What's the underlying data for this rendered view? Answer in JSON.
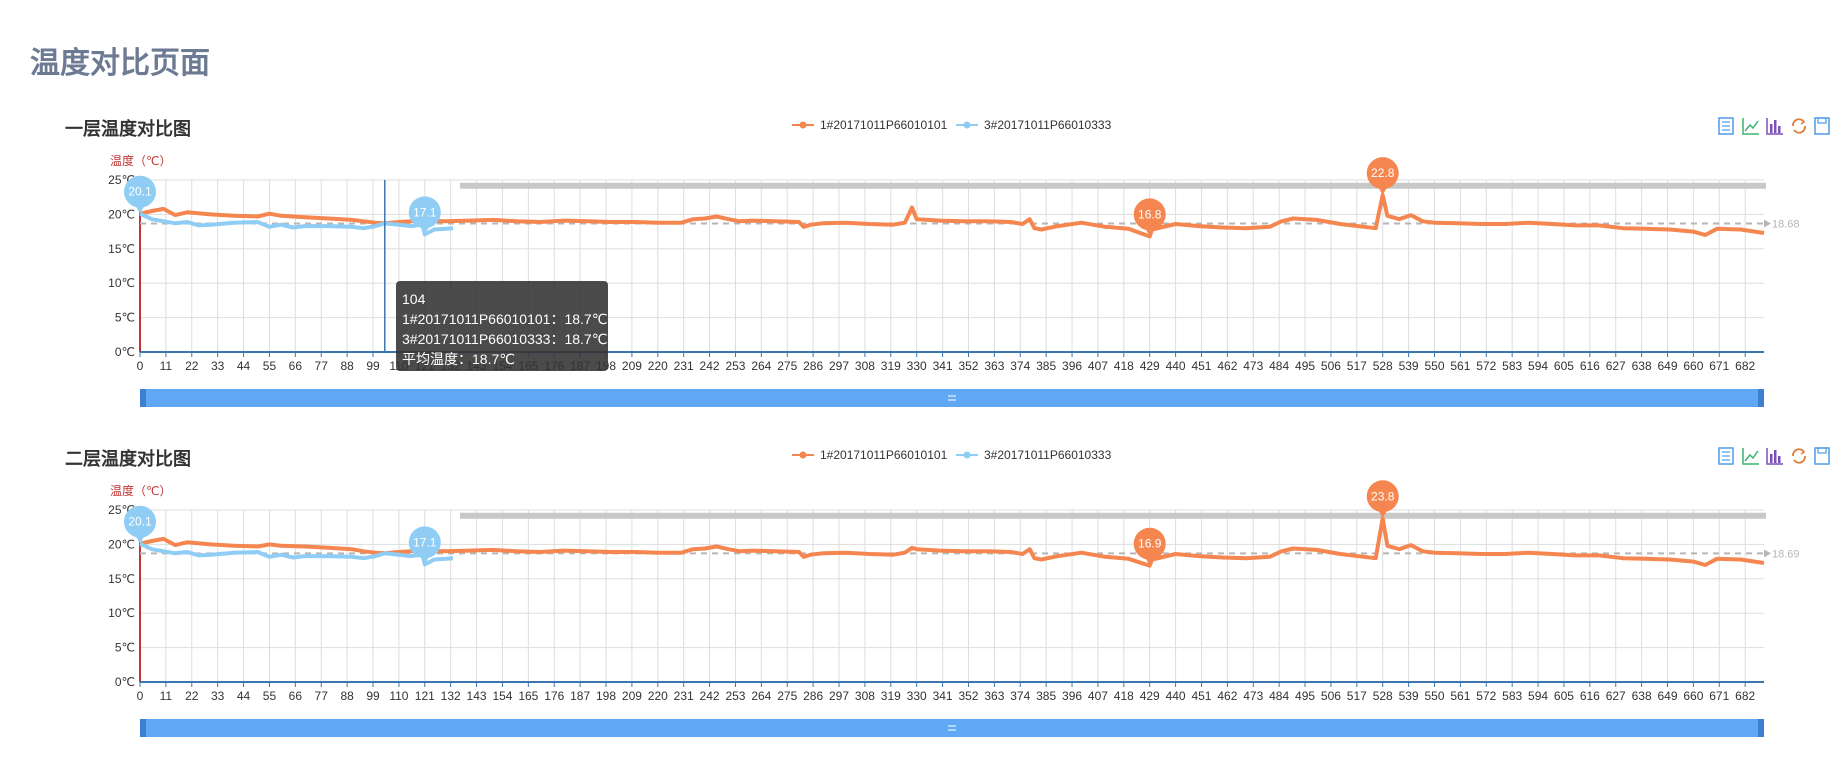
{
  "page": {
    "title": "温度对比页面"
  },
  "charts_meta": {
    "colors": {
      "series1": "#f5864f",
      "series2": "#8fcdf4",
      "avg": "#b6b6b6",
      "slider": "#61a8f4",
      "axis": "#3a77b0",
      "yaxis": "#c23531"
    },
    "toolbox": [
      "data-view-icon",
      "line-chart-icon",
      "bar-chart-icon",
      "restore-icon",
      "save-image-icon"
    ]
  },
  "tooltip": {
    "x": "104",
    "line1": "1#20171011P66010101：18.7℃",
    "line2": "3#20171011P66010333：18.7℃",
    "line3": "平均温度：18.7℃"
  },
  "chart_data": [
    {
      "type": "line",
      "title": "一层温度对比图",
      "ylabel": "温度（℃）",
      "ylim": [
        0,
        25
      ],
      "yticks": [
        "0℃",
        "5℃",
        "10℃",
        "15℃",
        "20℃",
        "25℃"
      ],
      "xlim": [
        0,
        690
      ],
      "xticks": [
        0,
        11,
        22,
        33,
        44,
        55,
        66,
        77,
        88,
        99,
        110,
        121,
        132,
        143,
        154,
        165,
        176,
        187,
        198,
        209,
        220,
        231,
        242,
        253,
        264,
        275,
        286,
        297,
        308,
        319,
        330,
        341,
        352,
        363,
        374,
        385,
        396,
        407,
        418,
        429,
        440,
        451,
        462,
        473,
        484,
        495,
        506,
        517,
        528,
        539,
        550,
        561,
        572,
        583,
        594,
        605,
        616,
        627,
        638,
        649,
        660,
        671,
        682
      ],
      "xtick_labels": [
        "0",
        "11",
        "22",
        "33",
        "44",
        "55",
        "66",
        "77",
        "88",
        "99",
        "110",
        "121",
        "132",
        "143",
        "154",
        "165",
        "176",
        "187",
        "198",
        "209",
        "220",
        "231",
        "242",
        "253",
        "264",
        "275",
        "286",
        "297",
        "308",
        "319",
        "330",
        "341",
        "352",
        "363",
        "374",
        "385",
        "396",
        "407",
        "418",
        "429",
        "440",
        "451",
        "462",
        "473",
        "484",
        "495",
        "506",
        "517",
        "528",
        "539",
        "550",
        "561",
        "572",
        "583",
        "594",
        "605",
        "616",
        "627",
        "638",
        "649",
        "660",
        "671",
        "682"
      ],
      "series": [
        {
          "name": "1#20171011P66010101",
          "x": [
            0,
            5,
            10,
            15,
            20,
            30,
            40,
            50,
            55,
            60,
            70,
            80,
            90,
            95,
            100,
            104,
            110,
            120,
            130,
            140,
            150,
            160,
            170,
            180,
            190,
            200,
            210,
            220,
            230,
            235,
            240,
            245,
            250,
            255,
            260,
            270,
            280,
            282,
            285,
            290,
            300,
            310,
            320,
            325,
            328,
            330,
            340,
            350,
            360,
            370,
            375,
            378,
            380,
            383,
            390,
            400,
            410,
            420,
            429,
            430,
            440,
            450,
            460,
            470,
            480,
            485,
            490,
            500,
            510,
            520,
            525,
            528,
            530,
            535,
            540,
            545,
            550,
            560,
            570,
            580,
            590,
            600,
            610,
            620,
            630,
            640,
            650,
            660,
            665,
            670,
            680,
            690
          ],
          "y": [
            20.1,
            20.5,
            20.8,
            19.9,
            20.3,
            20.0,
            19.8,
            19.7,
            20.1,
            19.8,
            19.6,
            19.4,
            19.2,
            19.0,
            18.8,
            18.7,
            18.9,
            19.1,
            19.0,
            19.1,
            19.2,
            19.0,
            18.9,
            19.1,
            19.0,
            18.9,
            18.9,
            18.8,
            18.8,
            19.3,
            19.4,
            19.7,
            19.3,
            19.0,
            19.1,
            19.0,
            18.9,
            18.2,
            18.5,
            18.7,
            18.8,
            18.6,
            18.5,
            18.8,
            21.0,
            19.3,
            19.1,
            19.0,
            19.0,
            18.9,
            18.6,
            19.3,
            18.0,
            17.8,
            18.3,
            18.8,
            18.2,
            17.9,
            16.8,
            17.8,
            18.6,
            18.3,
            18.1,
            18.0,
            18.2,
            19.0,
            19.4,
            19.2,
            18.6,
            18.2,
            18.0,
            22.8,
            19.8,
            19.3,
            19.9,
            19.0,
            18.8,
            18.7,
            18.6,
            18.6,
            18.8,
            18.6,
            18.4,
            18.4,
            18.0,
            17.9,
            17.8,
            17.5,
            17.0,
            17.9,
            17.8,
            17.3
          ]
        },
        {
          "name": "3#20171011P66010333",
          "x": [
            0,
            5,
            10,
            15,
            20,
            25,
            30,
            40,
            50,
            55,
            60,
            65,
            70,
            80,
            90,
            95,
            100,
            104,
            110,
            115,
            120,
            121,
            125,
            130,
            133
          ],
          "y": [
            20.1,
            19.3,
            19.0,
            18.7,
            18.9,
            18.4,
            18.5,
            18.8,
            18.9,
            18.2,
            18.5,
            18.1,
            18.3,
            18.3,
            18.2,
            18.0,
            18.3,
            18.7,
            18.5,
            18.3,
            18.5,
            17.1,
            17.8,
            17.9,
            18.0
          ]
        }
      ],
      "avg_line_label": "18.68",
      "markers": [
        {
          "label": "20.1",
          "x": 0,
          "y": 20.1,
          "series": 1
        },
        {
          "label": "17.1",
          "x": 121,
          "y": 17.1,
          "series": 1
        },
        {
          "label": "16.8",
          "x": 429,
          "y": 16.8,
          "series": 0
        },
        {
          "label": "22.8",
          "x": 528,
          "y": 22.8,
          "series": 0
        }
      ],
      "legend": [
        "1#20171011P66010101",
        "3#20171011P66010333"
      ],
      "crosshair_x": 104,
      "grid": true
    },
    {
      "type": "line",
      "title": "二层温度对比图",
      "ylabel": "温度（℃）",
      "ylim": [
        0,
        25
      ],
      "yticks": [
        "0℃",
        "5℃",
        "10℃",
        "15℃",
        "20℃",
        "25℃"
      ],
      "xlim": [
        0,
        690
      ],
      "xticks": [
        0,
        11,
        22,
        33,
        44,
        55,
        66,
        77,
        88,
        99,
        110,
        121,
        132,
        143,
        154,
        165,
        176,
        187,
        198,
        209,
        220,
        231,
        242,
        253,
        264,
        275,
        286,
        297,
        308,
        319,
        330,
        341,
        352,
        363,
        374,
        385,
        396,
        407,
        418,
        429,
        440,
        451,
        462,
        473,
        484,
        495,
        506,
        517,
        528,
        539,
        550,
        561,
        572,
        583,
        594,
        605,
        616,
        627,
        638,
        649,
        660,
        671,
        682
      ],
      "xtick_labels": [
        "0",
        "11",
        "22",
        "33",
        "44",
        "55",
        "66",
        "77",
        "88",
        "99",
        "110",
        "121",
        "132",
        "143",
        "154",
        "165",
        "176",
        "187",
        "198",
        "209",
        "220",
        "231",
        "242",
        "253",
        "264",
        "275",
        "286",
        "297",
        "308",
        "319",
        "330",
        "341",
        "352",
        "363",
        "374",
        "385",
        "396",
        "407",
        "418",
        "429",
        "440",
        "451",
        "462",
        "473",
        "484",
        "495",
        "506",
        "517",
        "528",
        "539",
        "550",
        "561",
        "572",
        "583",
        "594",
        "605",
        "616",
        "627",
        "638",
        "649",
        "660",
        "671",
        "682"
      ],
      "series": [
        {
          "name": "1#20171011P66010101",
          "x": [
            0,
            5,
            10,
            15,
            20,
            30,
            40,
            50,
            55,
            60,
            70,
            80,
            90,
            95,
            100,
            104,
            110,
            120,
            130,
            140,
            150,
            160,
            170,
            180,
            190,
            200,
            210,
            220,
            230,
            235,
            240,
            245,
            250,
            255,
            260,
            270,
            280,
            282,
            285,
            290,
            300,
            310,
            320,
            325,
            328,
            330,
            340,
            350,
            360,
            370,
            375,
            378,
            380,
            383,
            390,
            400,
            410,
            420,
            429,
            430,
            440,
            450,
            460,
            470,
            480,
            485,
            490,
            500,
            510,
            520,
            525,
            528,
            530,
            535,
            540,
            545,
            550,
            560,
            570,
            580,
            590,
            600,
            610,
            620,
            630,
            640,
            650,
            660,
            665,
            670,
            680,
            690
          ],
          "y": [
            20.1,
            20.5,
            20.8,
            19.9,
            20.3,
            20.0,
            19.8,
            19.7,
            20.0,
            19.8,
            19.7,
            19.5,
            19.3,
            19.0,
            18.8,
            18.7,
            18.9,
            19.1,
            19.0,
            19.1,
            19.2,
            19.0,
            18.9,
            19.1,
            19.0,
            18.9,
            18.9,
            18.8,
            18.8,
            19.3,
            19.4,
            19.7,
            19.3,
            19.0,
            19.1,
            19.0,
            18.9,
            18.2,
            18.5,
            18.7,
            18.8,
            18.6,
            18.5,
            18.8,
            19.5,
            19.3,
            19.1,
            19.0,
            19.0,
            18.9,
            18.6,
            19.3,
            18.0,
            17.8,
            18.3,
            18.8,
            18.2,
            17.9,
            16.9,
            17.8,
            18.6,
            18.3,
            18.1,
            18.0,
            18.2,
            19.0,
            19.4,
            19.2,
            18.6,
            18.2,
            18.0,
            23.8,
            19.8,
            19.3,
            19.9,
            19.0,
            18.8,
            18.7,
            18.6,
            18.6,
            18.8,
            18.6,
            18.4,
            18.4,
            18.0,
            17.9,
            17.8,
            17.5,
            17.0,
            17.9,
            17.8,
            17.3
          ]
        },
        {
          "name": "3#20171011P66010333",
          "x": [
            0,
            5,
            10,
            15,
            20,
            25,
            30,
            40,
            50,
            55,
            60,
            65,
            70,
            80,
            90,
            95,
            100,
            104,
            110,
            115,
            120,
            121,
            125,
            130,
            133
          ],
          "y": [
            20.1,
            19.3,
            19.0,
            18.7,
            18.9,
            18.4,
            18.5,
            18.8,
            18.9,
            18.2,
            18.5,
            18.1,
            18.3,
            18.3,
            18.2,
            18.0,
            18.3,
            18.7,
            18.5,
            18.3,
            18.5,
            17.1,
            17.8,
            17.9,
            18.0
          ]
        }
      ],
      "avg_line_label": "18.69",
      "markers": [
        {
          "label": "20.1",
          "x": 0,
          "y": 20.1,
          "series": 1
        },
        {
          "label": "17.1",
          "x": 121,
          "y": 17.1,
          "series": 1
        },
        {
          "label": "16.9",
          "x": 429,
          "y": 16.9,
          "series": 0
        },
        {
          "label": "23.8",
          "x": 528,
          "y": 23.8,
          "series": 0
        }
      ],
      "legend": [
        "1#20171011P66010101",
        "3#20171011P66010333"
      ],
      "grid": true
    }
  ]
}
